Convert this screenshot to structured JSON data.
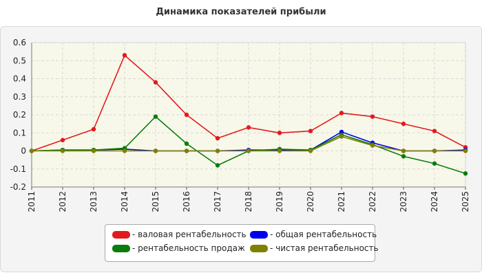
{
  "chart_data": {
    "type": "line",
    "title": "Динамика показателей прибыли",
    "xlabel": "",
    "ylabel": "",
    "categories": [
      "2011",
      "2012",
      "2013",
      "2014",
      "2015",
      "2016",
      "2017",
      "2018",
      "2019",
      "2020",
      "2021",
      "2022",
      "2023",
      "2024",
      "2025"
    ],
    "ylim": [
      -0.2,
      0.6
    ],
    "yticks": [
      "0.6",
      "0.5",
      "0.4",
      "0.3",
      "0.2",
      "0.1",
      "0",
      "-0.1",
      "-0.2"
    ],
    "grid": true,
    "legend_position": "bottom",
    "series": [
      {
        "name": "- валовая рентабельность",
        "color": "#e31a1c",
        "values": [
          0.0,
          0.06,
          0.12,
          0.53,
          0.38,
          0.2,
          0.07,
          0.13,
          0.1,
          0.11,
          0.21,
          0.19,
          0.15,
          0.11,
          0.02
        ]
      },
      {
        "name": "- общая рентабельность",
        "color": "#0000ee",
        "values": [
          0.0,
          0.005,
          0.005,
          0.01,
          0.0,
          0.0,
          0.0,
          0.005,
          0.005,
          0.005,
          0.105,
          0.045,
          0.0,
          0.0,
          0.005
        ]
      },
      {
        "name": "- рентабельность продаж",
        "color": "#0a7d0a",
        "values": [
          0.0,
          0.005,
          0.005,
          0.015,
          0.19,
          0.04,
          -0.08,
          0.0,
          0.01,
          0.005,
          0.09,
          0.035,
          -0.03,
          -0.07,
          -0.125
        ]
      },
      {
        "name": "- чистая рентабельность",
        "color": "#808000",
        "values": [
          0.0,
          0.0,
          0.0,
          0.0,
          0.0,
          0.0,
          0.0,
          0.0,
          0.0,
          0.0,
          0.08,
          0.03,
          0.0,
          0.0,
          0.0
        ]
      }
    ]
  }
}
